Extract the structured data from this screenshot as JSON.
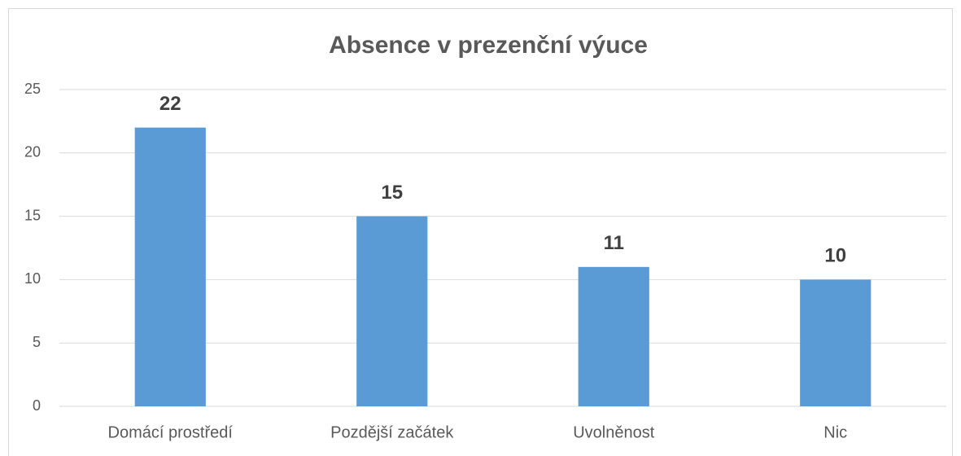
{
  "chart_data": {
    "type": "bar",
    "title": "Absence v prezenční výuce",
    "categories": [
      "Domácí prostředí",
      "Pozdější začátek",
      "Uvolněnost",
      "Nic"
    ],
    "values": [
      22,
      15,
      11,
      10
    ],
    "color": "#5b9bd5",
    "ylim": [
      0,
      25
    ],
    "yticks": [
      0,
      5,
      10,
      15,
      20,
      25
    ],
    "grid": true
  }
}
